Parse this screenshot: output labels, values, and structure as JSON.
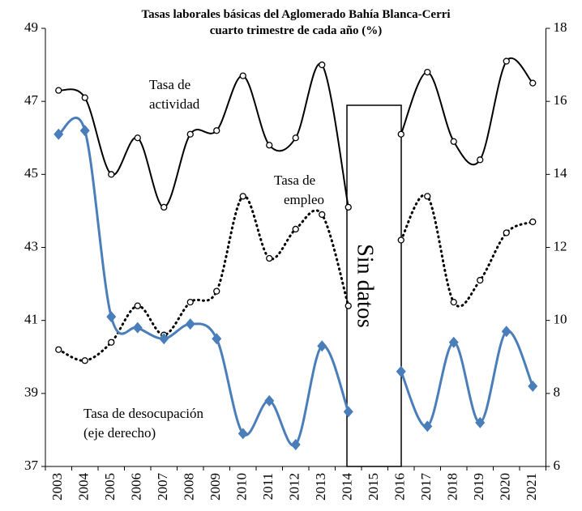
{
  "chart_data": {
    "type": "line",
    "title": [
      "Tasas laborales básicas del Aglomerado Bahía Blanca-Cerri",
      "cuarto trimestre de cada año (%)"
    ],
    "categories": [
      "2003",
      "2004",
      "2005",
      "2006",
      "2007",
      "2008",
      "2009",
      "2010",
      "2011",
      "2012",
      "2013",
      "2014",
      "2015",
      "2016",
      "2017",
      "2018",
      "2019",
      "2020",
      "2021"
    ],
    "series": [
      {
        "name": [
          "Tasa de",
          "actividad"
        ],
        "color": "#000000",
        "line": "solid",
        "marker": "circle",
        "values": [
          47.3,
          47.1,
          45.0,
          46.0,
          44.1,
          46.1,
          46.2,
          47.7,
          45.8,
          46.0,
          48.0,
          44.1,
          null,
          46.1,
          47.8,
          45.9,
          45.4,
          48.1,
          47.5
        ]
      },
      {
        "name": [
          "Tasa de",
          "empleo"
        ],
        "color": "#000000",
        "line": "dotted",
        "marker": "circle",
        "values": [
          40.2,
          39.9,
          40.4,
          41.4,
          40.6,
          41.5,
          41.8,
          44.4,
          42.7,
          43.5,
          43.9,
          41.4,
          null,
          43.2,
          44.4,
          41.5,
          42.1,
          43.4,
          43.7
        ]
      },
      {
        "name": [
          "Tasa de desocupación",
          "(eje derecho)"
        ],
        "color": "#4a7ebb",
        "line": "solid",
        "marker": "diamond",
        "axis": "y2",
        "values": [
          15.1,
          15.2,
          10.1,
          9.8,
          9.5,
          9.9,
          9.5,
          6.9,
          7.8,
          6.6,
          9.3,
          7.5,
          null,
          8.6,
          7.1,
          9.4,
          7.2,
          9.7,
          8.2
        ]
      }
    ],
    "annotations": [
      "Sin datos"
    ],
    "ylim": [
      37,
      49
    ],
    "yticks": [
      37,
      39,
      41,
      43,
      45,
      47,
      49
    ],
    "y2lim": [
      6,
      18
    ],
    "y2ticks": [
      6,
      8,
      10,
      12,
      14,
      16,
      18
    ],
    "grid": false
  }
}
